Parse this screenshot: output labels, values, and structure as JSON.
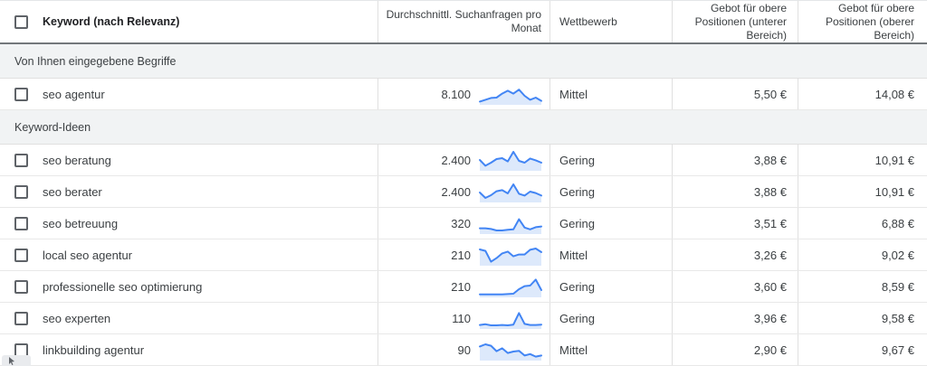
{
  "colors": {
    "spark_line": "#4285f4",
    "spark_fill": "#dde9fb",
    "section_bg": "#f1f3f4",
    "border": "#e0e0e0",
    "header_border": "#72777b"
  },
  "table": {
    "header": {
      "keyword": "Keyword (nach Relevanz)",
      "avg_searches": "Durchschnittl. Suchanfragen pro Monat",
      "competition": "Wettbewerb",
      "top_bid_low": "Gebot für obere Positionen (unterer Bereich)",
      "top_bid_high": "Gebot für obere Positionen (oberer Bereich)"
    },
    "sections": [
      {
        "label": "Von Ihnen eingegebene Begriffe",
        "rows": [
          {
            "keyword": "seo agentur",
            "searches": "8.100",
            "competition": "Mittel",
            "bid_low": "5,50 €",
            "bid_high": "14,08 €",
            "trend": [
              8,
              18,
              28,
              30,
              52,
              68,
              52,
              74,
              40,
              18,
              30,
              12
            ]
          }
        ]
      },
      {
        "label": "Keyword-Ideen",
        "rows": [
          {
            "keyword": "seo beratung",
            "searches": "2.400",
            "competition": "Gering",
            "bid_low": "3,88 €",
            "bid_high": "10,91 €",
            "trend": [
              50,
              18,
              35,
              55,
              60,
              42,
              95,
              45,
              35,
              58,
              48,
              35
            ]
          },
          {
            "keyword": "seo berater",
            "searches": "2.400",
            "competition": "Gering",
            "bid_low": "3,88 €",
            "bid_high": "10,91 €",
            "trend": [
              45,
              15,
              30,
              52,
              58,
              40,
              90,
              38,
              28,
              50,
              42,
              28
            ]
          },
          {
            "keyword": "seo betreuung",
            "searches": "320",
            "competition": "Gering",
            "bid_low": "3,51 €",
            "bid_high": "6,88 €",
            "trend": [
              22,
              22,
              18,
              10,
              10,
              14,
              16,
              72,
              26,
              16,
              28,
              32
            ]
          },
          {
            "keyword": "local seo agentur",
            "searches": "210",
            "competition": "Mittel",
            "bid_low": "3,26 €",
            "bid_high": "9,02 €",
            "trend": [
              80,
              72,
              12,
              32,
              58,
              68,
              42,
              52,
              52,
              78,
              85,
              65
            ]
          },
          {
            "keyword": "professionelle seo optimierung",
            "searches": "210",
            "competition": "Gering",
            "bid_low": "3,60 €",
            "bid_high": "8,59 €",
            "trend": [
              6,
              6,
              6,
              6,
              6,
              8,
              10,
              35,
              52,
              55,
              88,
              30
            ]
          },
          {
            "keyword": "seo experten",
            "searches": "110",
            "competition": "Gering",
            "bid_low": "3,96 €",
            "bid_high": "9,58 €",
            "trend": [
              12,
              16,
              10,
              10,
              12,
              10,
              14,
              78,
              18,
              12,
              12,
              14
            ]
          },
          {
            "keyword": "linkbuilding agentur",
            "searches": "90",
            "competition": "Mittel",
            "bid_low": "2,90 €",
            "bid_high": "9,67 €",
            "trend": [
              68,
              80,
              72,
              42,
              58,
              32,
              40,
              44,
              18,
              26,
              12,
              18
            ]
          }
        ]
      }
    ]
  }
}
